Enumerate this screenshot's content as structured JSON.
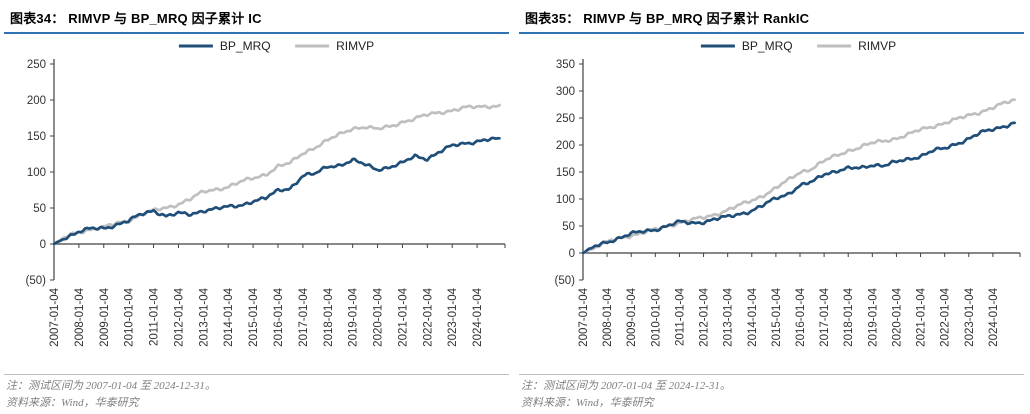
{
  "panels": [
    {
      "title": "图表34：  RIMVP 与 BP_MRQ 因子累计 IC",
      "note": "注：测试区间为 2007-01-04 至 2024-12-31。",
      "source": "资料来源：Wind，华泰研究"
    },
    {
      "title": "图表35：  RIMVP 与 BP_MRQ 因子累计 RankIC",
      "note": "注：测试区间为 2007-01-04 至 2024-12-31。",
      "source": "资料来源：Wind，华泰研究"
    }
  ],
  "colors": {
    "bp_mrq_blue": "#1F4E79",
    "rimvp_gray": "#BFBFBF",
    "title_underline": "#2E74B5",
    "axis": "#404040",
    "note_text": "#7F7F7F"
  },
  "chart_data": [
    {
      "type": "line",
      "title": "RIMVP 与 BP_MRQ 因子累计 IC",
      "xlabel": "",
      "ylabel": "",
      "ylim": [
        -50,
        250
      ],
      "ytick_step": 50,
      "grid": false,
      "legend_position": "top-center",
      "x_tick_labels": [
        "2007-01-04",
        "2008-01-04",
        "2009-01-04",
        "2010-01-04",
        "2011-01-04",
        "2012-01-04",
        "2013-01-04",
        "2014-01-04",
        "2015-01-04",
        "2016-01-04",
        "2017-01-04",
        "2018-01-04",
        "2019-01-04",
        "2020-01-04",
        "2021-01-04",
        "2022-01-04",
        "2023-01-04",
        "2024-01-04"
      ],
      "x": [
        2007,
        2007.5,
        2008,
        2008.5,
        2009,
        2009.5,
        2010,
        2010.5,
        2011,
        2011.5,
        2012,
        2012.5,
        2013,
        2013.5,
        2014,
        2014.5,
        2015,
        2015.5,
        2016,
        2016.5,
        2017,
        2017.5,
        2018,
        2018.5,
        2019,
        2019.5,
        2020,
        2020.5,
        2021,
        2021.5,
        2022,
        2022.5,
        2023,
        2023.5,
        2024,
        2024.5,
        2024.9
      ],
      "series": [
        {
          "name": "BP_MRQ",
          "color": "#1F4E79",
          "values": [
            0,
            10,
            17,
            21,
            22,
            27,
            32,
            41,
            47,
            39,
            42,
            41,
            47,
            49,
            51,
            54,
            60,
            63,
            74,
            78,
            95,
            97,
            108,
            110,
            116,
            110,
            104,
            107,
            112,
            122,
            119,
            128,
            136,
            140,
            143,
            145,
            145
          ]
        },
        {
          "name": "RIMVP",
          "color": "#BFBFBF",
          "values": [
            0,
            10,
            17,
            21,
            23,
            28,
            33,
            41,
            46,
            50,
            56,
            63,
            72,
            76,
            80,
            86,
            91,
            97,
            108,
            112,
            126,
            135,
            144,
            152,
            161,
            163,
            159,
            163,
            170,
            174,
            179,
            183,
            186,
            189,
            190,
            192,
            192
          ]
        }
      ]
    },
    {
      "type": "line",
      "title": "RIMVP 与 BP_MRQ 因子累计 RankIC",
      "xlabel": "",
      "ylabel": "",
      "ylim": [
        -50,
        350
      ],
      "ytick_step": 50,
      "grid": false,
      "legend_position": "top-center",
      "x_tick_labels": [
        "2007-01-04",
        "2008-01-04",
        "2009-01-04",
        "2010-01-04",
        "2011-01-04",
        "2012-01-04",
        "2013-01-04",
        "2014-01-04",
        "2015-01-04",
        "2016-01-04",
        "2017-01-04",
        "2018-01-04",
        "2019-01-04",
        "2020-01-04",
        "2021-01-04",
        "2022-01-04",
        "2023-01-04",
        "2024-01-04"
      ],
      "x": [
        2007,
        2007.5,
        2008,
        2008.5,
        2009,
        2009.5,
        2010,
        2010.5,
        2011,
        2011.5,
        2012,
        2012.5,
        2013,
        2013.5,
        2014,
        2014.5,
        2015,
        2015.5,
        2016,
        2016.5,
        2017,
        2017.5,
        2018,
        2018.5,
        2019,
        2019.5,
        2020,
        2020.5,
        2021,
        2021.5,
        2022,
        2022.5,
        2023,
        2023.5,
        2024,
        2024.5,
        2024.9
      ],
      "series": [
        {
          "name": "BP_MRQ",
          "color": "#1F4E79",
          "values": [
            0,
            12,
            21,
            28,
            35,
            40,
            44,
            50,
            57,
            56,
            58,
            62,
            67,
            73,
            78,
            88,
            102,
            110,
            124,
            131,
            147,
            152,
            156,
            157,
            164,
            162,
            168,
            174,
            180,
            189,
            193,
            203,
            212,
            222,
            229,
            236,
            241
          ]
        },
        {
          "name": "RIMVP",
          "color": "#BFBFBF",
          "values": [
            0,
            11,
            20,
            27,
            33,
            38,
            43,
            50,
            57,
            61,
            65,
            72,
            80,
            88,
            97,
            108,
            120,
            134,
            150,
            157,
            170,
            180,
            190,
            196,
            203,
            208,
            213,
            219,
            228,
            235,
            241,
            247,
            255,
            262,
            269,
            277,
            284
          ]
        }
      ]
    }
  ]
}
